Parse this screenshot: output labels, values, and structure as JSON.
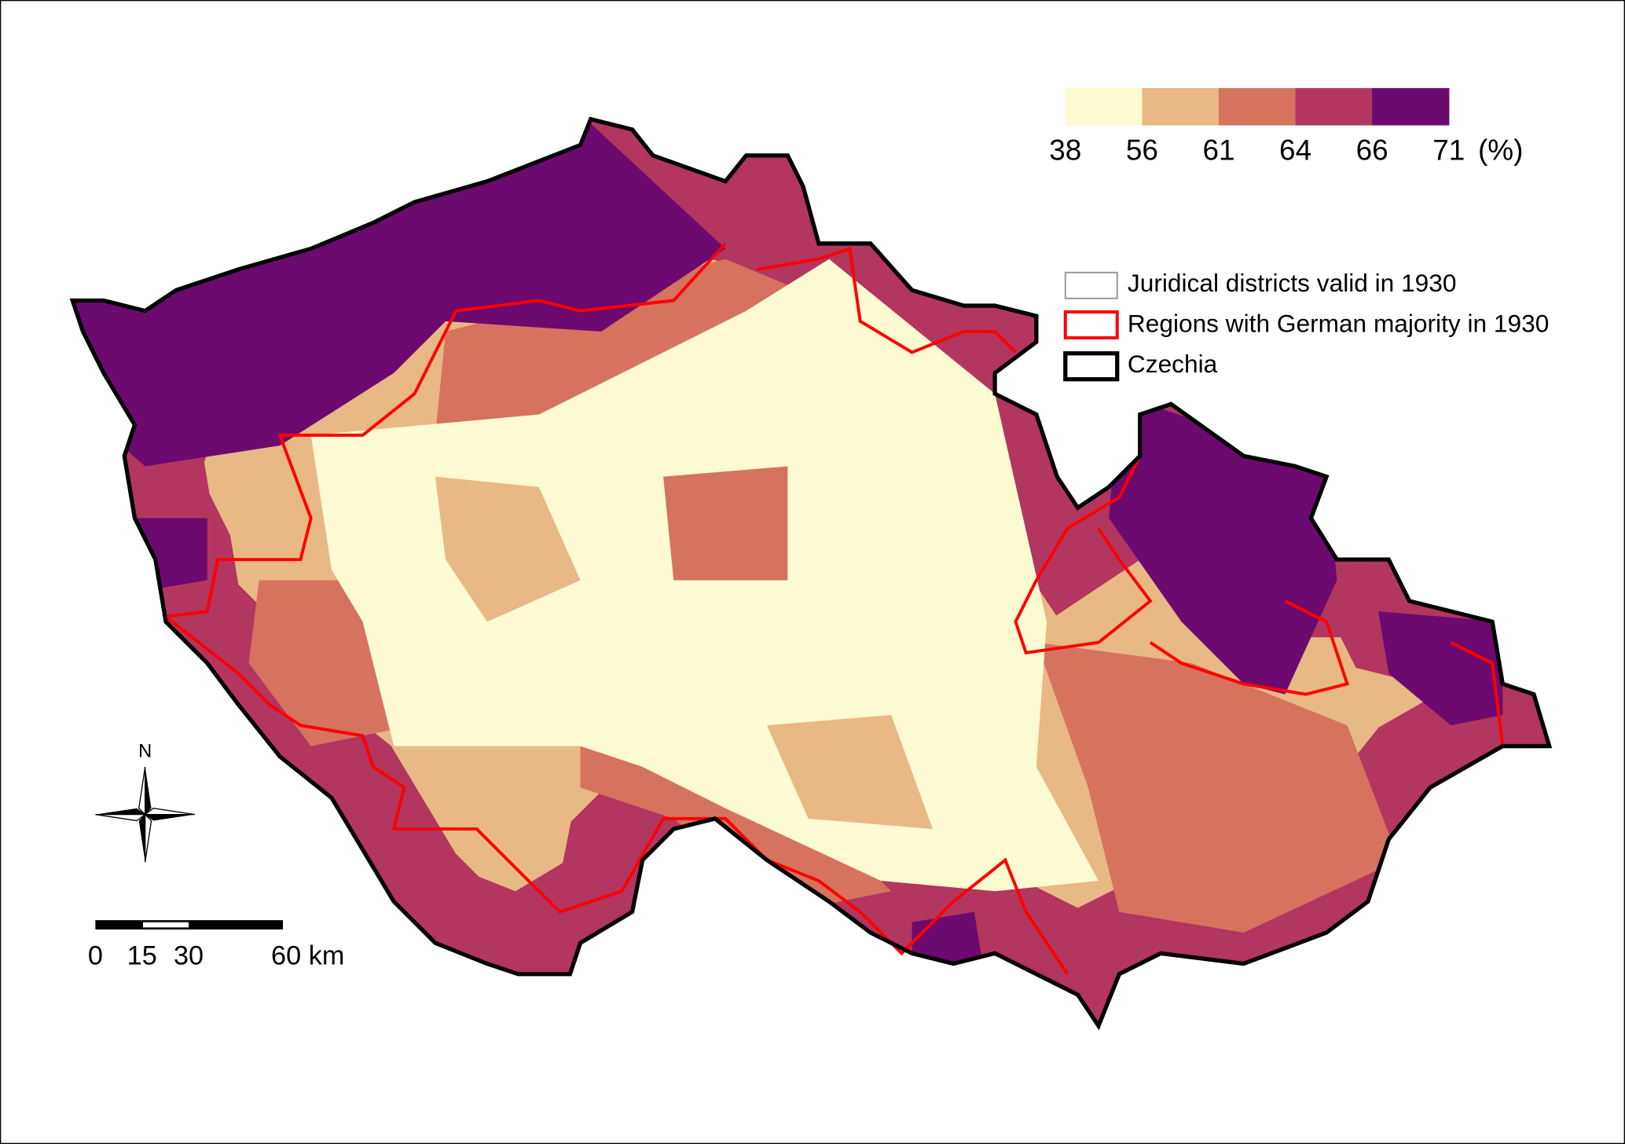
{
  "color_scale": {
    "breaks": [
      38,
      56,
      61,
      64,
      66,
      71
    ],
    "unit": "(%)",
    "colors": [
      "#fefad2",
      "#e8b885",
      "#d5735e",
      "#b2365f",
      "#6d0a70"
    ]
  },
  "legend": {
    "items": [
      "Juridical districts valid in 1930",
      "Regions with German majority in 1930",
      "Czechia"
    ]
  },
  "north_arrow": {
    "label": "N"
  },
  "scale_bar": {
    "labels": [
      "0",
      "15",
      "30",
      "60 km"
    ]
  }
}
